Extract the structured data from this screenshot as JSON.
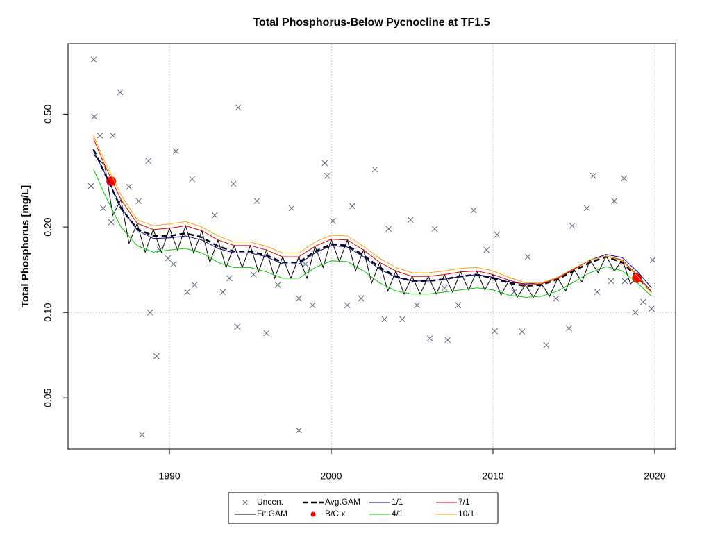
{
  "chart_data": {
    "type": "scatter",
    "title": "Total Phosphorus-Below Pycnocline at TF1.5",
    "y_label": "Total Phosphorus [mg/L]",
    "xlim": [
      1983.73,
      2021.29
    ],
    "xticks": [
      1990,
      2000,
      2010,
      2020
    ],
    "ylim": [
      0.033,
      0.885
    ],
    "y_log": true,
    "yticks": [
      0.05,
      {
        "value": 0.1,
        "label": "0.10"
      },
      {
        "value": 0.2,
        "label": "0.20"
      },
      {
        "value": 0.5,
        "label": "0.50"
      }
    ],
    "x_grid": true,
    "y_grid": [
      0.1
    ],
    "legend_position": "bottom",
    "series": [
      {
        "name": "Uncen.",
        "kind": "cross",
        "color": "#5a6780",
        "x": [
          1985.32,
          1985.35,
          1986.95,
          1986.5,
          1985.7,
          1985.15,
          1985.9,
          1988.3,
          1989.2,
          1988.8,
          1989.9,
          1990.4,
          1988.7,
          1991.4,
          1994.25,
          1993.95,
          1994.2,
          1996.0,
          1998.0,
          1999.6,
          1999.75,
          2002.7,
          2003.3,
          2006.1,
          2007.2,
          2010.1,
          2011.8,
          2013.3,
          2014.7,
          2016.2,
          2017.5,
          2018.1,
          2014.9,
          2015.8,
          2018.8,
          2019.87,
          2019.8,
          2019.3,
          2001.3,
          2000.1,
          2004.9,
          2006.4,
          2008.8,
          2010.25,
          2005.3,
          2007.0,
          2001.85,
          1998.0,
          1996.7,
          1995.2,
          1993.3,
          1991.55,
          1990.25,
          1992.8,
          1995.4,
          1997.55,
          1998.4,
          2003.55,
          2009.6,
          2012.15,
          2013.9,
          2016.45,
          2017.3,
          1988.1,
          1987.5,
          1989.4,
          1986.4,
          2001.0,
          2007.85,
          2011.3,
          2018.15,
          2004.4,
          1998.85,
          1993.7,
          1991.1
        ],
        "values": [
          0.778,
          0.49,
          0.597,
          0.42,
          0.42,
          0.279,
          0.233,
          0.0371,
          0.0701,
          0.1,
          0.155,
          0.37,
          0.342,
          0.295,
          0.527,
          0.284,
          0.089,
          0.0845,
          0.0384,
          0.336,
          0.303,
          0.319,
          0.0946,
          0.081,
          0.08,
          0.0859,
          0.0855,
          0.0767,
          0.0879,
          0.303,
          0.247,
          0.297,
          0.202,
          0.233,
          0.1,
          0.153,
          0.103,
          0.109,
          0.237,
          0.21,
          0.212,
          0.197,
          0.229,
          0.188,
          0.106,
          0.122,
          0.112,
          0.112,
          0.125,
          0.136,
          0.118,
          0.125,
          0.148,
          0.22,
          0.247,
          0.233,
          0.148,
          0.197,
          0.166,
          0.157,
          0.112,
          0.118,
          0.129,
          0.247,
          0.277,
          0.166,
          0.208,
          0.106,
          0.106,
          0.118,
          0.129,
          0.0946,
          0.106,
          0.132,
          0.118
        ]
      },
      {
        "name": "Fit.GAM",
        "kind": "line",
        "color": "#000000",
        "x": [
          1985.3,
          1986,
          1986.5,
          1987,
          1987.5,
          1988,
          1988.5,
          1989,
          1989.5,
          1990,
          1990.5,
          1991,
          1991.5,
          1992,
          1992.5,
          1993,
          1993.5,
          1994,
          1994.5,
          1995,
          1995.5,
          1996,
          1996.5,
          1997,
          1997.5,
          1998,
          1998.5,
          1999,
          1999.5,
          2000,
          2000.5,
          2001,
          2001.5,
          2002,
          2002.5,
          2003,
          2003.5,
          2004,
          2004.5,
          2005,
          2005.5,
          2006,
          2006.5,
          2007,
          2007.5,
          2008,
          2008.5,
          2009,
          2009.5,
          2010,
          2010.5,
          2011,
          2011.5,
          2012,
          2012.5,
          2013,
          2013.5,
          2014,
          2014.5,
          2015,
          2015.5,
          2016,
          2016.5,
          2017,
          2017.5,
          2018,
          2018.5,
          2019,
          2019.8
        ],
        "values": [
          0.36,
          0.33,
          0.22,
          0.25,
          0.175,
          0.206,
          0.163,
          0.196,
          0.163,
          0.198,
          0.166,
          0.202,
          0.162,
          0.194,
          0.15,
          0.18,
          0.144,
          0.172,
          0.144,
          0.172,
          0.139,
          0.166,
          0.132,
          0.157,
          0.132,
          0.157,
          0.132,
          0.171,
          0.144,
          0.181,
          0.151,
          0.18,
          0.14,
          0.166,
          0.127,
          0.15,
          0.119,
          0.14,
          0.116,
          0.134,
          0.116,
          0.134,
          0.116,
          0.136,
          0.118,
          0.139,
          0.12,
          0.14,
          0.12,
          0.136,
          0.115,
          0.13,
          0.113,
          0.125,
          0.113,
          0.126,
          0.114,
          0.132,
          0.119,
          0.142,
          0.128,
          0.153,
          0.138,
          0.158,
          0.14,
          0.153,
          0.126,
          0.134,
          0.118
        ]
      },
      {
        "name": "Avg.GAM",
        "kind": "dashed",
        "color": "#000000",
        "x": [
          1985.3,
          1986,
          1987,
          1988,
          1989,
          1990,
          1991,
          1992,
          1993,
          1994,
          1995,
          1996,
          1997,
          1998,
          1999,
          2000,
          2001,
          2002,
          2003,
          2004,
          2005,
          2006,
          2007,
          2008,
          2009,
          2010,
          2011,
          2012,
          2013,
          2014,
          2015,
          2016,
          2017,
          2018,
          2019,
          2019.8
        ],
        "values": [
          0.376,
          0.309,
          0.233,
          0.197,
          0.186,
          0.186,
          0.19,
          0.184,
          0.171,
          0.164,
          0.164,
          0.159,
          0.15,
          0.15,
          0.164,
          0.174,
          0.172,
          0.159,
          0.144,
          0.134,
          0.129,
          0.129,
          0.131,
          0.134,
          0.136,
          0.132,
          0.127,
          0.124,
          0.125,
          0.131,
          0.14,
          0.15,
          0.157,
          0.15,
          0.132,
          0.118
        ]
      },
      {
        "name": "B/C x",
        "kind": "dot",
        "color": "#ff0000",
        "x": [
          1986.4,
          2018.9
        ],
        "values": [
          0.29,
          0.132
        ]
      },
      {
        "name": "1/1",
        "kind": "line",
        "color": "#00008b",
        "x": [
          1985.3,
          1986,
          1987,
          1988,
          1989,
          1990,
          1991,
          1992,
          1993,
          1994,
          1995,
          1996,
          1997,
          1998,
          1999,
          2000,
          2001,
          2002,
          2003,
          2004,
          2005,
          2006,
          2007,
          2008,
          2009,
          2010,
          2011,
          2012,
          2013,
          2014,
          2015,
          2016,
          2017,
          2018,
          2019,
          2019.8
        ],
        "values": [
          0.37,
          0.31,
          0.235,
          0.195,
          0.182,
          0.183,
          0.186,
          0.18,
          0.168,
          0.162,
          0.162,
          0.157,
          0.148,
          0.148,
          0.162,
          0.172,
          0.17,
          0.157,
          0.142,
          0.133,
          0.129,
          0.129,
          0.131,
          0.134,
          0.136,
          0.133,
          0.128,
          0.126,
          0.127,
          0.133,
          0.142,
          0.153,
          0.16,
          0.156,
          0.138,
          0.122
        ]
      },
      {
        "name": "4/1",
        "kind": "line",
        "color": "#00cc00",
        "x": [
          1985.3,
          1986,
          1987,
          1988,
          1989,
          1990,
          1991,
          1992,
          1993,
          1994,
          1995,
          1996,
          1997,
          1998,
          1999,
          2000,
          2001,
          2002,
          2003,
          2004,
          2005,
          2006,
          2007,
          2008,
          2009,
          2010,
          2011,
          2012,
          2013,
          2014,
          2015,
          2016,
          2017,
          2018,
          2019,
          2019.8
        ],
        "values": [
          0.32,
          0.26,
          0.2,
          0.172,
          0.163,
          0.166,
          0.168,
          0.162,
          0.15,
          0.144,
          0.144,
          0.139,
          0.132,
          0.132,
          0.144,
          0.152,
          0.151,
          0.14,
          0.127,
          0.119,
          0.116,
          0.116,
          0.118,
          0.12,
          0.122,
          0.12,
          0.115,
          0.113,
          0.114,
          0.119,
          0.128,
          0.138,
          0.145,
          0.14,
          0.126,
          0.114
        ]
      },
      {
        "name": "7/1",
        "kind": "line",
        "color": "#e00000",
        "x": [
          1985.3,
          1986,
          1987,
          1988,
          1989,
          1990,
          1991,
          1992,
          1993,
          1994,
          1995,
          1996,
          1997,
          1998,
          1999,
          2000,
          2001,
          2002,
          2003,
          2004,
          2005,
          2006,
          2007,
          2008,
          2009,
          2010,
          2011,
          2012,
          2013,
          2014,
          2015,
          2016,
          2017,
          2018,
          2019,
          2019.8
        ],
        "values": [
          0.41,
          0.33,
          0.25,
          0.206,
          0.196,
          0.198,
          0.202,
          0.194,
          0.18,
          0.172,
          0.172,
          0.166,
          0.157,
          0.157,
          0.171,
          0.181,
          0.18,
          0.166,
          0.15,
          0.14,
          0.134,
          0.134,
          0.136,
          0.139,
          0.14,
          0.136,
          0.13,
          0.125,
          0.126,
          0.132,
          0.142,
          0.153,
          0.158,
          0.153,
          0.134,
          0.118
        ]
      },
      {
        "name": "10/1",
        "kind": "line",
        "color": "#ffa500",
        "x": [
          1985.3,
          1986,
          1987,
          1988,
          1989,
          1990,
          1991,
          1992,
          1993,
          1994,
          1995,
          1996,
          1997,
          1998,
          1999,
          2000,
          2001,
          2002,
          2003,
          2004,
          2005,
          2006,
          2007,
          2008,
          2009,
          2010,
          2011,
          2012,
          2013,
          2014,
          2015,
          2016,
          2017,
          2018,
          2019,
          2019.8
        ],
        "values": [
          0.42,
          0.34,
          0.26,
          0.212,
          0.202,
          0.205,
          0.209,
          0.2,
          0.186,
          0.177,
          0.177,
          0.171,
          0.162,
          0.162,
          0.177,
          0.187,
          0.186,
          0.171,
          0.155,
          0.144,
          0.138,
          0.138,
          0.14,
          0.143,
          0.144,
          0.14,
          0.133,
          0.127,
          0.127,
          0.133,
          0.143,
          0.153,
          0.158,
          0.152,
          0.133,
          0.117
        ]
      }
    ]
  }
}
